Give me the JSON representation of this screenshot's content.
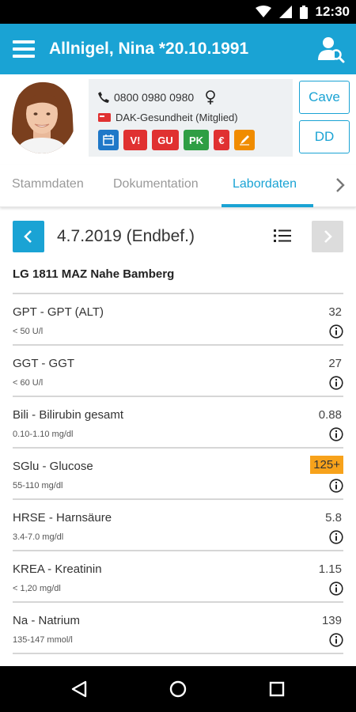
{
  "status": {
    "time": "12:30"
  },
  "appbar": {
    "title": "Allnigel, Nina *20.10.1991"
  },
  "patient": {
    "phone": "0800 0980 0980",
    "insurance": "DAK-Gesundheit (Mitglied)",
    "badges": [
      {
        "label": "",
        "icon": "calendar-icon",
        "color": "#1f78c8"
      },
      {
        "label": "V!",
        "color": "#e03131"
      },
      {
        "label": "GU",
        "color": "#e03131"
      },
      {
        "label": "PK",
        "color": "#2f9e44"
      },
      {
        "label": "€",
        "color": "#e03131"
      },
      {
        "label": "",
        "icon": "pen-icon",
        "color": "#f08c00"
      }
    ],
    "cave_label": "Cave",
    "dd_label": "DD"
  },
  "tabs": [
    {
      "label": "Stammdaten",
      "active": false
    },
    {
      "label": "Dokumentation",
      "active": false
    },
    {
      "label": "Labordaten",
      "active": true
    }
  ],
  "report": {
    "date": "4.7.2019 (Endbef.)",
    "lab": "LG 1811 MAZ Nahe Bamberg"
  },
  "labs": [
    {
      "name": "GPT - GPT (ALT)",
      "range": "< 50 U/l",
      "value": "32",
      "high": false
    },
    {
      "name": "GGT - GGT",
      "range": "< 60 U/l",
      "value": "27",
      "high": false
    },
    {
      "name": "Bili - Bilirubin gesamt",
      "range": "0.10-1.10 mg/dl",
      "value": "0.88",
      "high": false
    },
    {
      "name": "SGlu - Glucose",
      "range": "55-110 mg/dl",
      "value": "125+",
      "high": true
    },
    {
      "name": "HRSE - Harnsäure",
      "range": "3.4-7.0 mg/dl",
      "value": "5.8",
      "high": false
    },
    {
      "name": "KREA - Kreatinin",
      "range": "< 1,20 mg/dl",
      "value": "1.15",
      "high": false
    },
    {
      "name": "Na - Natrium",
      "range": "135-147 mmol/l",
      "value": "139",
      "high": false
    }
  ],
  "colors": {
    "accent": "#1aa3d4",
    "highlight": "#f7a21b"
  }
}
